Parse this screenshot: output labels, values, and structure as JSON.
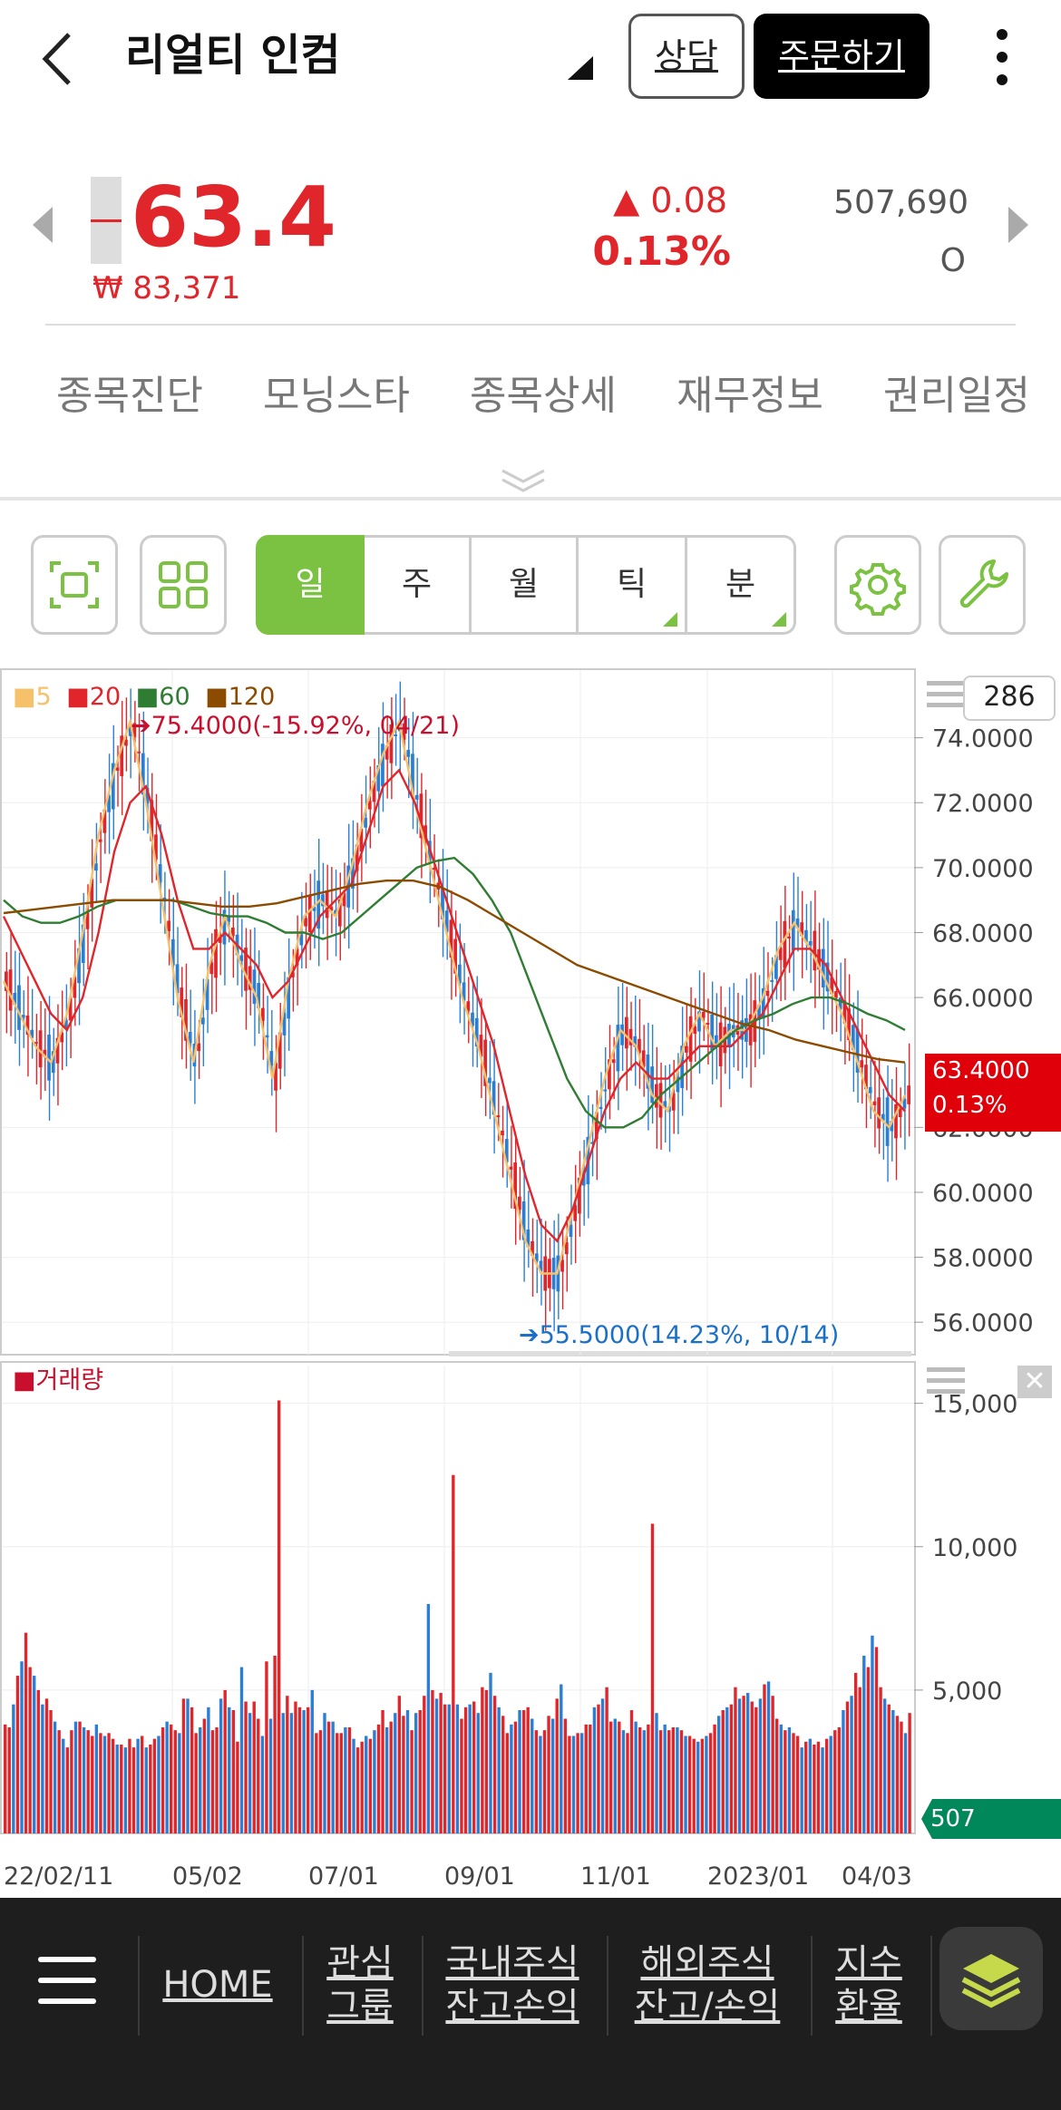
{
  "header": {
    "title": "리얼티 인컴",
    "consult_label": "상담",
    "order_label": "주문하기"
  },
  "quote": {
    "price": "63.4",
    "krw": "₩ 83,371",
    "change": "▲ 0.08",
    "change_pct": "0.13%",
    "volume": "507,690",
    "status": "O"
  },
  "tabs": [
    "종목진단",
    "모닝스타",
    "종목상세",
    "재무정보",
    "권리일정"
  ],
  "periods": [
    "일",
    "주",
    "월",
    "틱",
    "분"
  ],
  "colors": {
    "up": "#e0262b",
    "down": "#2a7fd4",
    "accent": "#7cc242",
    "ma5": "#f5c26b",
    "ma20": "#e0262b",
    "ma60": "#2e7d32",
    "ma120": "#8b4b00"
  },
  "chart_data": [
    {
      "type": "line",
      "title": "",
      "count_box": "286",
      "legend": [
        "5",
        "20",
        "60",
        "120"
      ],
      "ylim": [
        55,
        76
      ],
      "y_ticks": [
        "74.0000",
        "72.0000",
        "70.0000",
        "68.0000",
        "66.0000",
        "62.0000",
        "60.0000",
        "58.0000",
        "56.0000"
      ],
      "current_price": "63.4000",
      "current_pct": "0.13%",
      "high_annotation": "75.4000(-15.92%, 04/21)",
      "low_annotation": "55.5000(14.23%, 10/14)",
      "x_labels": [
        "22/02/11",
        "05/02",
        "07/01",
        "09/01",
        "11/01",
        "2023/01",
        "04/03"
      ],
      "series": [
        {
          "name": "5",
          "values": [
            66.5,
            65.5,
            64.5,
            64,
            65.5,
            68,
            71,
            73,
            74.5,
            72,
            69,
            66,
            64,
            67,
            68.5,
            67,
            66,
            63.5,
            66.5,
            68.5,
            69,
            68.5,
            70,
            72,
            73.5,
            74.5,
            72,
            70,
            68,
            66,
            64.5,
            62.5,
            60.5,
            58.5,
            57.5,
            57.5,
            59.5,
            61.5,
            63.5,
            65,
            64.5,
            63,
            62.5,
            64.5,
            65.5,
            64.5,
            65,
            65,
            66,
            67.5,
            68.3,
            67.5,
            66.5,
            65.5,
            64,
            62.5,
            62,
            63
          ]
        },
        {
          "name": "20",
          "values": [
            68.5,
            67.5,
            66.5,
            65.5,
            65,
            66,
            68,
            70.5,
            72,
            72.5,
            71,
            69,
            67.5,
            67.5,
            68,
            67.5,
            67,
            66,
            66.5,
            67.5,
            68.5,
            69,
            69.5,
            71,
            72.5,
            73,
            72,
            70.5,
            69,
            67.5,
            66,
            64.5,
            62.5,
            60.5,
            59,
            58.5,
            59.5,
            61,
            62.5,
            63.5,
            64,
            63.5,
            63.5,
            64,
            64.5,
            64.5,
            64.5,
            65,
            65.5,
            66.5,
            67.5,
            67.5,
            67,
            66,
            65,
            64,
            63,
            62.5
          ]
        },
        {
          "name": "60",
          "values": [
            69,
            68.5,
            68.3,
            68.3,
            68.5,
            68.8,
            69,
            69,
            69,
            69,
            68.8,
            68.6,
            68.5,
            68.5,
            68.3,
            68,
            68,
            67.8,
            68,
            68.5,
            69,
            69.5,
            70,
            70.2,
            70.3,
            69.8,
            69,
            68,
            66.5,
            65,
            63.5,
            62.5,
            62,
            62,
            62.3,
            63,
            63.5,
            64,
            64.5,
            65,
            65.3,
            65.5,
            65.8,
            66,
            66,
            65.8,
            65.5,
            65.3,
            65
          ]
        },
        {
          "name": "120",
          "values": [
            68.6,
            68.7,
            68.8,
            68.9,
            69,
            69,
            69,
            68.9,
            68.8,
            68.8,
            68.9,
            69.1,
            69.3,
            69.5,
            69.6,
            69.6,
            69.4,
            69,
            68.5,
            68,
            67.5,
            67,
            66.7,
            66.4,
            66.1,
            65.8,
            65.5,
            65.2,
            65,
            64.7,
            64.5,
            64.3,
            64.1,
            64
          ]
        }
      ]
    },
    {
      "type": "bar",
      "title": "거래량",
      "ylim": [
        0,
        16000
      ],
      "y_ticks": [
        "15,000",
        "10,000",
        "5,000"
      ],
      "current_volume": "507",
      "values": [
        3800,
        3700,
        4500,
        5500,
        6000,
        7000,
        5800,
        5500,
        5000,
        4500,
        4700,
        4300,
        3900,
        3600,
        3300,
        3000,
        3600,
        3900,
        3900,
        3700,
        3600,
        3400,
        3800,
        3500,
        3400,
        3500,
        3300,
        3100,
        3100,
        3000,
        3300,
        3000,
        3300,
        3400,
        3000,
        3100,
        3300,
        3400,
        3700,
        3900,
        3800,
        3600,
        3500,
        4700,
        4700,
        4400,
        3500,
        3700,
        4000,
        4400,
        3600,
        3700,
        4700,
        5000,
        4400,
        4300,
        3200,
        5800,
        4600,
        4200,
        4600,
        4000,
        3400,
        6000,
        4000,
        6200,
        15100,
        4200,
        4800,
        4200,
        4600,
        4400,
        4300,
        4400,
        5000,
        3500,
        3600,
        4200,
        3900,
        3900,
        3500,
        3500,
        3700,
        3700,
        3300,
        3000,
        3200,
        3400,
        3300,
        3600,
        3800,
        4300,
        3700,
        3900,
        4200,
        4800,
        4100,
        4300,
        3600,
        4200,
        4300,
        4800,
        8000,
        5000,
        4700,
        4900,
        4500,
        4500,
        12500,
        4500,
        4000,
        4400,
        4500,
        4600,
        4200,
        5100,
        5000,
        5600,
        4800,
        4400,
        4100,
        3500,
        3800,
        3900,
        4300,
        4300,
        4400,
        4000,
        3600,
        3400,
        3600,
        4100,
        4000,
        4700,
        5200,
        4000,
        3400,
        3400,
        3500,
        3500,
        3800,
        3800,
        4400,
        4500,
        4700,
        5100,
        3900,
        4000,
        3900,
        3600,
        3500,
        4300,
        3900,
        3700,
        3600,
        3800,
        10800,
        4200,
        3600,
        3800,
        3600,
        3700,
        3700,
        3600,
        3400,
        3400,
        3300,
        3200,
        3300,
        3400,
        3500,
        3800,
        4100,
        4300,
        4400,
        4500,
        5100,
        4700,
        4800,
        4900,
        4600,
        4400,
        4700,
        5200,
        5300,
        4800,
        4000,
        3800,
        3600,
        3700,
        3500,
        3400,
        3000,
        3200,
        3300,
        3100,
        3200,
        3000,
        3300,
        3400,
        3600,
        3700,
        4300,
        4600,
        4800,
        5600,
        5100,
        6200,
        5800,
        6900,
        6500,
        5100,
        4700,
        4500,
        4300,
        4100,
        3900,
        3500,
        4200
      ]
    }
  ],
  "nav": {
    "home": "HOME",
    "watch1": "관심",
    "watch2": "그룹",
    "dom1": "국내주식",
    "dom2": "잔고손익",
    "ovs1": "해외주식",
    "ovs2": "잔고/손익",
    "idx1": "지수",
    "idx2": "환율"
  }
}
